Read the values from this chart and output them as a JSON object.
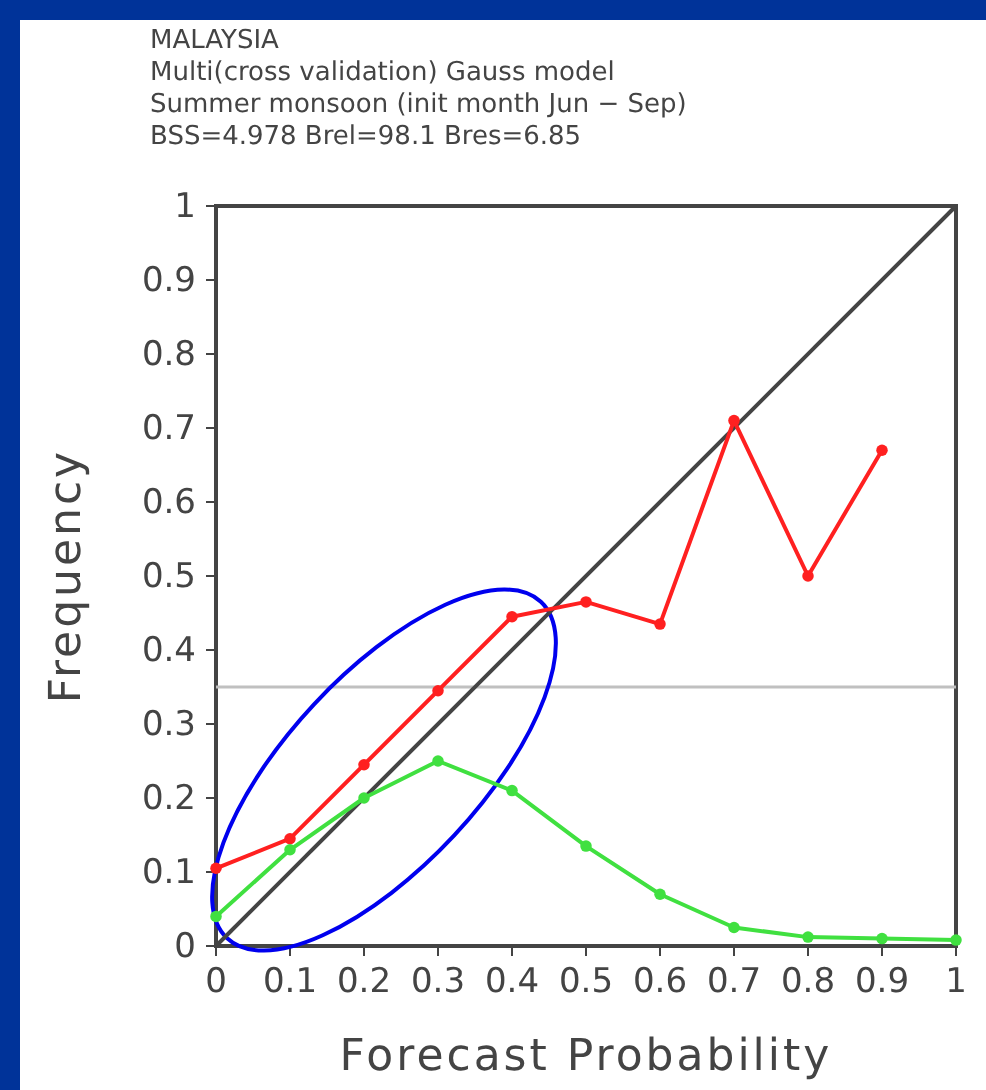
{
  "chart_data": {
    "type": "line",
    "title": "MALAYSIA",
    "subtitle": "Multi(cross validation) Gauss model",
    "annotations": [
      "Summer monsoon (init month Jun − Sep)",
      "BSS=4.978   Brel=98.1   Bres=6.85"
    ],
    "xlabel": "Forecast Probability",
    "ylabel": "Frequency",
    "xlim": [
      0,
      1
    ],
    "ylim": [
      0,
      1
    ],
    "xticks": [
      0,
      0.1,
      0.2,
      0.3,
      0.4,
      0.5,
      0.6,
      0.7,
      0.8,
      0.9,
      1
    ],
    "yticks": [
      0,
      0.1,
      0.2,
      0.3,
      0.4,
      0.5,
      0.6,
      0.7,
      0.8,
      0.9,
      1
    ],
    "grid": false,
    "marker": "circle",
    "ref_lines": [
      {
        "axis": "y",
        "value": 0.35,
        "color": "#c0c0c0"
      }
    ],
    "series": [
      {
        "color": "#444444",
        "x": [
          0,
          1
        ],
        "values": [
          0,
          1
        ],
        "marker": "none"
      },
      {
        "color": "#ff2020",
        "x": [
          0,
          0.1,
          0.2,
          0.3,
          0.4,
          0.5,
          0.6,
          0.7,
          0.8,
          0.9
        ],
        "values": [
          0.105,
          0.145,
          0.245,
          0.345,
          0.445,
          0.465,
          0.435,
          0.71,
          0.5,
          0.67
        ]
      },
      {
        "color": "#40e040",
        "x": [
          0,
          0.1,
          0.2,
          0.3,
          0.4,
          0.5,
          0.6,
          0.7,
          0.8,
          0.9,
          1
        ],
        "values": [
          0.04,
          0.13,
          0.2,
          0.25,
          0.21,
          0.135,
          0.07,
          0.025,
          0.012,
          0.01,
          0.008
        ]
      }
    ]
  }
}
